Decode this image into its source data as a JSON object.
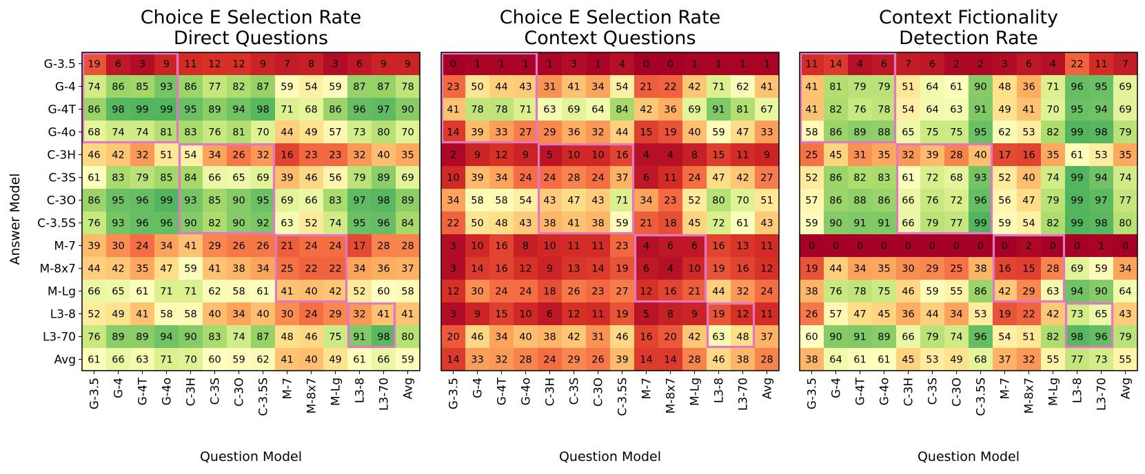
{
  "figure": {
    "ylabel": "Answer Model",
    "row_labels": [
      "G-3.5",
      "G-4",
      "G-4T",
      "G-4o",
      "C-3H",
      "C-3S",
      "C-3O",
      "C-3.5S",
      "M-7",
      "M-8x7",
      "M-Lg",
      "L3-8",
      "L3-70",
      "Avg"
    ],
    "highlight_color": "#e277c4"
  },
  "chart_data": [
    {
      "type": "heatmap",
      "title": "Choice E Selection Rate",
      "subtitle": "Direct Questions",
      "xlabel": "Question Model",
      "ylabel": "Answer Model",
      "x": [
        "G-3.5",
        "G-4",
        "G-4T",
        "G-4o",
        "C-3H",
        "C-3S",
        "C-3O",
        "C-3.5S",
        "M-7",
        "M-8x7",
        "M-Lg",
        "L3-8",
        "L3-70",
        "Avg"
      ],
      "y": [
        "G-3.5",
        "G-4",
        "G-4T",
        "G-4o",
        "C-3H",
        "C-3S",
        "C-3O",
        "C-3.5S",
        "M-7",
        "M-8x7",
        "M-Lg",
        "L3-8",
        "L3-70",
        "Avg"
      ],
      "values": [
        [
          19,
          6,
          3,
          9,
          11,
          12,
          12,
          9,
          7,
          8,
          3,
          6,
          9,
          9
        ],
        [
          74,
          86,
          85,
          93,
          86,
          77,
          82,
          87,
          59,
          54,
          59,
          87,
          87,
          78
        ],
        [
          86,
          98,
          99,
          99,
          95,
          89,
          94,
          98,
          71,
          68,
          86,
          96,
          97,
          90
        ],
        [
          68,
          74,
          74,
          81,
          83,
          76,
          81,
          70,
          44,
          49,
          57,
          73,
          80,
          70
        ],
        [
          46,
          42,
          32,
          51,
          54,
          34,
          26,
          32,
          16,
          23,
          23,
          32,
          40,
          35
        ],
        [
          61,
          83,
          79,
          85,
          84,
          66,
          65,
          69,
          39,
          46,
          56,
          79,
          89,
          69
        ],
        [
          86,
          95,
          96,
          99,
          93,
          85,
          90,
          95,
          69,
          66,
          83,
          97,
          98,
          89
        ],
        [
          76,
          93,
          96,
          96,
          90,
          82,
          90,
          92,
          63,
          52,
          74,
          95,
          96,
          84
        ],
        [
          39,
          30,
          24,
          34,
          41,
          29,
          26,
          26,
          21,
          24,
          24,
          17,
          28,
          28
        ],
        [
          44,
          42,
          35,
          47,
          59,
          41,
          38,
          34,
          25,
          22,
          22,
          34,
          36,
          37
        ],
        [
          66,
          65,
          61,
          71,
          71,
          62,
          58,
          61,
          41,
          40,
          42,
          52,
          60,
          58
        ],
        [
          52,
          49,
          41,
          58,
          58,
          40,
          34,
          40,
          30,
          24,
          29,
          32,
          41,
          41
        ],
        [
          76,
          89,
          89,
          94,
          90,
          83,
          74,
          87,
          48,
          46,
          75,
          91,
          98,
          80
        ],
        [
          61,
          66,
          63,
          71,
          70,
          60,
          59,
          62,
          41,
          40,
          49,
          61,
          66,
          59
        ]
      ],
      "colormap": "RdYlGn",
      "vrange": [
        0,
        120
      ],
      "highlight_blocks": [
        [
          0,
          3,
          0,
          3
        ],
        [
          4,
          7,
          4,
          7
        ],
        [
          8,
          10,
          8,
          10
        ],
        [
          11,
          12,
          11,
          12
        ]
      ]
    },
    {
      "type": "heatmap",
      "title": "Choice E Selection Rate",
      "subtitle": "Context Questions",
      "xlabel": "Question Model",
      "ylabel": "",
      "x": [
        "G-3.5",
        "G-4",
        "G-4T",
        "G-4o",
        "C-3H",
        "C-3S",
        "C-3O",
        "C-3.5S",
        "M-7",
        "M-8x7",
        "M-Lg",
        "L3-8",
        "L3-70",
        "Avg"
      ],
      "y": [
        "G-3.5",
        "G-4",
        "G-4T",
        "G-4o",
        "C-3H",
        "C-3S",
        "C-3O",
        "C-3.5S",
        "M-7",
        "M-8x7",
        "M-Lg",
        "L3-8",
        "L3-70",
        "Avg"
      ],
      "values": [
        [
          0,
          1,
          1,
          1,
          1,
          3,
          1,
          4,
          0,
          0,
          1,
          1,
          1,
          1
        ],
        [
          23,
          50,
          44,
          43,
          31,
          41,
          34,
          54,
          21,
          22,
          42,
          71,
          62,
          41
        ],
        [
          41,
          78,
          78,
          71,
          63,
          69,
          64,
          84,
          42,
          36,
          69,
          91,
          81,
          67
        ],
        [
          14,
          39,
          33,
          27,
          29,
          36,
          32,
          44,
          15,
          19,
          40,
          59,
          47,
          33
        ],
        [
          2,
          9,
          12,
          9,
          5,
          10,
          10,
          16,
          4,
          4,
          8,
          15,
          11,
          9
        ],
        [
          10,
          39,
          34,
          24,
          24,
          28,
          24,
          37,
          6,
          11,
          24,
          47,
          42,
          27
        ],
        [
          34,
          58,
          58,
          54,
          43,
          47,
          43,
          71,
          34,
          23,
          52,
          80,
          70,
          51
        ],
        [
          22,
          50,
          48,
          43,
          38,
          41,
          38,
          59,
          21,
          18,
          45,
          72,
          61,
          43
        ],
        [
          3,
          10,
          16,
          8,
          10,
          11,
          11,
          23,
          4,
          6,
          6,
          16,
          13,
          11
        ],
        [
          3,
          14,
          16,
          12,
          9,
          13,
          14,
          19,
          6,
          4,
          10,
          19,
          16,
          12
        ],
        [
          12,
          30,
          24,
          24,
          18,
          26,
          23,
          27,
          12,
          16,
          21,
          44,
          32,
          24
        ],
        [
          3,
          9,
          15,
          10,
          6,
          12,
          11,
          19,
          5,
          8,
          9,
          19,
          12,
          11
        ],
        [
          20,
          46,
          34,
          40,
          38,
          42,
          31,
          46,
          16,
          20,
          42,
          63,
          48,
          37
        ],
        [
          14,
          33,
          32,
          28,
          24,
          29,
          26,
          39,
          14,
          14,
          28,
          46,
          38,
          28
        ]
      ],
      "colormap": "RdYlGn",
      "vrange": [
        0,
        120
      ],
      "highlight_blocks": [
        [
          0,
          3,
          0,
          3
        ],
        [
          4,
          7,
          4,
          7
        ],
        [
          8,
          10,
          8,
          10
        ],
        [
          11,
          12,
          11,
          12
        ]
      ]
    },
    {
      "type": "heatmap",
      "title": "Context Fictionality",
      "subtitle": "Detection Rate",
      "xlabel": "Question Model",
      "ylabel": "",
      "x": [
        "G-3.5",
        "G-4",
        "G-4T",
        "G-4o",
        "C-3H",
        "C-3S",
        "C-3O",
        "C-3.5S",
        "M-7",
        "M-8x7",
        "M-Lg",
        "L3-8",
        "L3-70",
        "Avg"
      ],
      "y": [
        "G-3.5",
        "G-4",
        "G-4T",
        "G-4o",
        "C-3H",
        "C-3S",
        "C-3O",
        "C-3.5S",
        "M-7",
        "M-8x7",
        "M-Lg",
        "L3-8",
        "L3-70",
        "Avg"
      ],
      "values": [
        [
          11,
          14,
          4,
          6,
          7,
          6,
          2,
          2,
          3,
          6,
          4,
          22,
          11,
          7
        ],
        [
          41,
          81,
          79,
          79,
          51,
          64,
          61,
          90,
          48,
          36,
          71,
          96,
          95,
          69
        ],
        [
          41,
          82,
          76,
          78,
          54,
          64,
          63,
          91,
          49,
          41,
          70,
          95,
          94,
          69
        ],
        [
          58,
          86,
          89,
          88,
          65,
          75,
          75,
          95,
          62,
          53,
          82,
          99,
          98,
          79
        ],
        [
          25,
          45,
          31,
          35,
          32,
          39,
          28,
          40,
          17,
          16,
          35,
          61,
          53,
          35
        ],
        [
          52,
          86,
          82,
          83,
          61,
          72,
          68,
          93,
          52,
          40,
          74,
          99,
          94,
          74
        ],
        [
          57,
          86,
          88,
          86,
          66,
          76,
          72,
          96,
          56,
          47,
          79,
          99,
          97,
          77
        ],
        [
          59,
          90,
          91,
          91,
          66,
          79,
          77,
          99,
          59,
          54,
          82,
          99,
          98,
          80
        ],
        [
          0,
          0,
          0,
          0,
          0,
          0,
          0,
          0,
          0,
          2,
          0,
          0,
          1,
          0
        ],
        [
          19,
          44,
          34,
          35,
          30,
          29,
          25,
          38,
          16,
          15,
          28,
          69,
          59,
          34
        ],
        [
          38,
          76,
          78,
          75,
          46,
          59,
          55,
          86,
          42,
          29,
          63,
          94,
          90,
          64
        ],
        [
          26,
          57,
          47,
          45,
          36,
          44,
          34,
          53,
          19,
          22,
          42,
          73,
          65,
          43
        ],
        [
          60,
          90,
          91,
          89,
          66,
          79,
          74,
          96,
          54,
          51,
          82,
          98,
          96,
          79
        ],
        [
          38,
          64,
          61,
          61,
          45,
          53,
          49,
          68,
          37,
          32,
          55,
          77,
          73,
          55
        ]
      ],
      "colormap": "RdYlGn",
      "vrange": [
        0,
        120
      ],
      "highlight_blocks": [
        [
          0,
          3,
          0,
          3
        ],
        [
          4,
          7,
          4,
          7
        ],
        [
          8,
          10,
          8,
          10
        ],
        [
          11,
          12,
          11,
          12
        ]
      ]
    }
  ]
}
